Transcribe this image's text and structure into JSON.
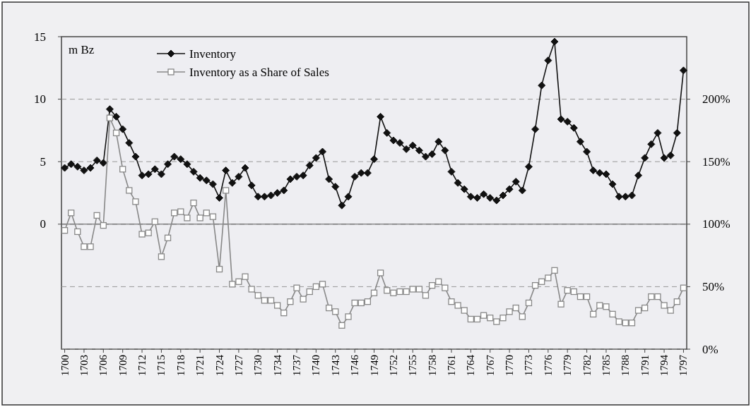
{
  "chart_data": {
    "type": "line",
    "ylabel": "m Bz",
    "categories": [
      "1700",
      null,
      null,
      "1703",
      null,
      null,
      "1706",
      null,
      null,
      "1709",
      null,
      null,
      "1712",
      null,
      null,
      "1715",
      null,
      null,
      "1718",
      null,
      null,
      "1721",
      null,
      null,
      "1724",
      null,
      null,
      "1727",
      null,
      null,
      "1730",
      null,
      null,
      "1734",
      null,
      null,
      "1737",
      null,
      null,
      "1740",
      null,
      null,
      "1743",
      null,
      null,
      "1746",
      null,
      null,
      "1749",
      null,
      null,
      "1752",
      null,
      null,
      "1755",
      null,
      null,
      "1758",
      null,
      null,
      "1761",
      null,
      null,
      "1764",
      null,
      null,
      "1767",
      null,
      null,
      "1770",
      null,
      null,
      "1773",
      null,
      null,
      "1776",
      null,
      null,
      "1779",
      null,
      null,
      "1782",
      null,
      null,
      "1785",
      null,
      null,
      "1788",
      null,
      null,
      "1791",
      null,
      null,
      "1794",
      null,
      null,
      "1797"
    ],
    "series": [
      {
        "name": "Inventory",
        "color": "#111111",
        "marker": "diamond",
        "values": [
          4.5,
          4.8,
          4.6,
          4.3,
          4.5,
          5.1,
          4.9,
          9.2,
          8.6,
          7.6,
          6.5,
          5.4,
          3.9,
          4.0,
          4.4,
          4.0,
          4.8,
          5.4,
          5.2,
          4.8,
          4.2,
          3.7,
          3.5,
          3.2,
          2.1,
          4.3,
          3.3,
          3.8,
          4.5,
          3.1,
          2.2,
          2.2,
          2.3,
          2.5,
          2.7,
          3.6,
          3.8,
          3.9,
          4.7,
          5.3,
          5.8,
          3.6,
          3.0,
          1.5,
          2.2,
          3.8,
          4.1,
          4.1,
          5.2,
          8.6,
          7.3,
          6.7,
          6.5,
          6.0,
          6.3,
          5.9,
          5.4,
          5.6,
          6.6,
          5.9,
          4.2,
          3.3,
          2.8,
          2.2,
          2.1,
          2.4,
          2.1,
          1.9,
          2.3,
          2.8,
          3.4,
          2.7,
          4.6,
          7.6,
          11.1,
          13.1,
          14.6,
          8.4,
          8.2,
          7.7,
          6.6,
          5.8,
          4.3,
          4.1,
          4.0,
          3.2,
          2.2,
          2.2,
          2.3,
          3.9,
          5.3,
          6.4,
          7.3,
          5.3,
          5.5,
          7.3,
          12.3
        ]
      },
      {
        "name": "Inventory as a Share of Sales",
        "color": "#888888",
        "marker": "square",
        "axis": "y2",
        "values": [
          95,
          109,
          94,
          82,
          82,
          107,
          99,
          185,
          173,
          144,
          127,
          118,
          92,
          93,
          102,
          74,
          89,
          109,
          110,
          105,
          117,
          105,
          109,
          106,
          64,
          127,
          52,
          54,
          58,
          48,
          43,
          39,
          39,
          35,
          29,
          38,
          49,
          40,
          46,
          50,
          52,
          33,
          30,
          19,
          26,
          37,
          37,
          38,
          45,
          61,
          47,
          45,
          46,
          46,
          48,
          48,
          43,
          51,
          54,
          49,
          38,
          35,
          31,
          24,
          24,
          27,
          25,
          22,
          25,
          30,
          33,
          26,
          37,
          51,
          54,
          57,
          63,
          36,
          47,
          46,
          42,
          42,
          28,
          35,
          34,
          28,
          22,
          21,
          21,
          31,
          33,
          42,
          42,
          35,
          31,
          38,
          49
        ]
      }
    ],
    "ylim": [
      -10,
      15
    ],
    "yticks": [
      0,
      5,
      10,
      15
    ],
    "y2lim": [
      0,
      250
    ],
    "y2ticks": [
      {
        "value": 0,
        "label": "0%"
      },
      {
        "value": 50,
        "label": "50%"
      },
      {
        "value": 100,
        "label": "100%"
      },
      {
        "value": 150,
        "label": "150%"
      },
      {
        "value": 200,
        "label": "200%"
      }
    ],
    "grid": true,
    "legend": "top left",
    "line_style": "solid"
  }
}
